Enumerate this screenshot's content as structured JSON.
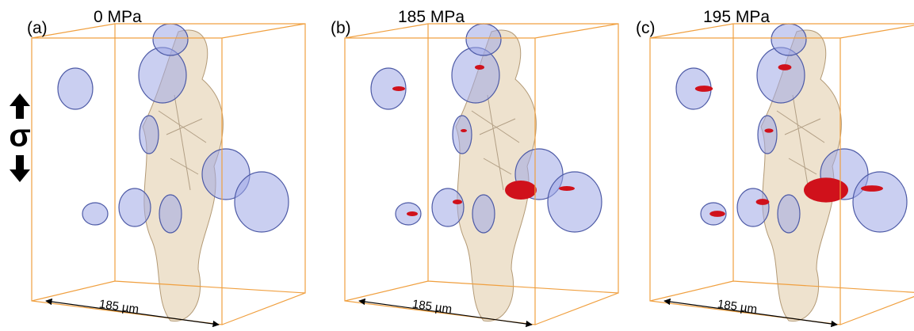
{
  "stress_symbol": "σ",
  "panels": [
    {
      "label": "(a)",
      "title": "0 MPa",
      "scale": "185 µm"
    },
    {
      "label": "(b)",
      "title": "185 MPa",
      "scale": "185 µm"
    },
    {
      "label": "(c)",
      "title": "195 MPa",
      "scale": "185 µm"
    }
  ]
}
